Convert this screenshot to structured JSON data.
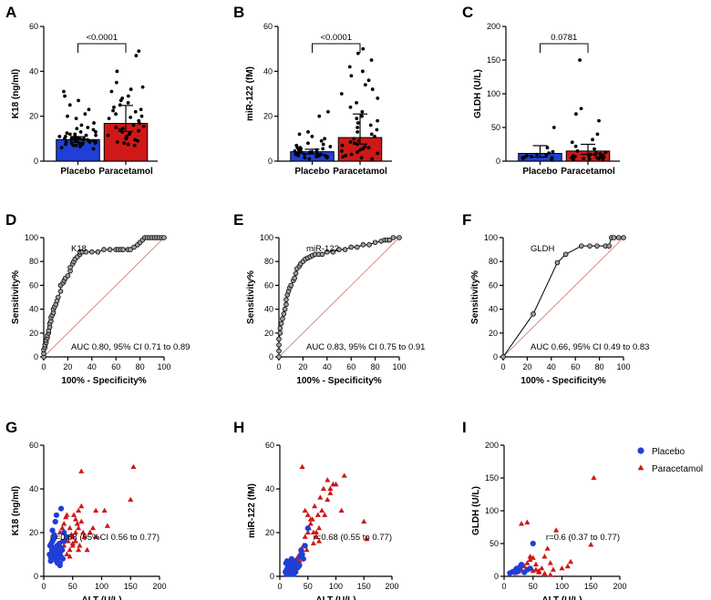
{
  "colors": {
    "placebo": "#1f3fd6",
    "paracetamol": "#d01818",
    "axis": "#000000",
    "diagonal": "#e05555",
    "roc_marker_fill": "#9e9e9e"
  },
  "legend": {
    "placement": "top-right",
    "entries": [
      "Placebo",
      "Paracetamol"
    ]
  },
  "chart_data": [
    {
      "id": "A",
      "type": "bar",
      "ylabel": "K18 (ng/ml)",
      "categories": [
        "Placebo",
        "Paracetamol"
      ],
      "ylim": [
        0,
        60
      ],
      "yticks": [
        "0",
        "20",
        "40",
        "60"
      ],
      "means": [
        9.6,
        16.8
      ],
      "ci": [
        [
          8.3,
          10.9
        ],
        [
          13.2,
          24.8
        ]
      ],
      "pvalue": "<0.0001",
      "points": [
        [
          5.5,
          6,
          6.5,
          7,
          7,
          7.5,
          7.5,
          8,
          8,
          8,
          8.5,
          8.5,
          8.5,
          9,
          9,
          9,
          9,
          9.5,
          9.5,
          9.5,
          10,
          10,
          10,
          10,
          10.5,
          10.5,
          11,
          11,
          11,
          11.5,
          11.5,
          12,
          12,
          12.5,
          13,
          13,
          14,
          14.5,
          15,
          16,
          17,
          19,
          20,
          21,
          23,
          25,
          27,
          29,
          31
        ],
        [
          7,
          7.5,
          8,
          8.5,
          9,
          9.5,
          10,
          10.5,
          11,
          11.5,
          12,
          12.5,
          13,
          13.5,
          14,
          14.5,
          15,
          15.5,
          16,
          17,
          18,
          19,
          19.5,
          20,
          21,
          22,
          22.5,
          23,
          24,
          25,
          26,
          27,
          28,
          29,
          31,
          32,
          33,
          35,
          40,
          47,
          49
        ]
      ]
    },
    {
      "id": "B",
      "type": "bar",
      "ylabel": "miR-122 (fM)",
      "categories": [
        "Placebo",
        "Paracetamol"
      ],
      "ylim": [
        0,
        60
      ],
      "yticks": [
        "0",
        "20",
        "40",
        "60"
      ],
      "means": [
        4.2,
        10.5
      ],
      "ci": [
        [
          3.2,
          5.3
        ],
        [
          7.6,
          21.0
        ]
      ],
      "pvalue": "<0.0001",
      "points": [
        [
          1,
          1.5,
          1.5,
          2,
          2,
          2.5,
          2.5,
          2.5,
          3,
          3,
          3,
          3.5,
          3.5,
          3.5,
          4,
          4,
          4,
          4.5,
          4.5,
          5,
          5,
          5.5,
          5.5,
          6,
          6,
          6.5,
          7,
          7.5,
          8,
          9,
          10,
          11,
          12,
          13,
          20,
          22
        ],
        [
          1,
          1.5,
          2,
          2.5,
          3,
          3.5,
          4,
          4.5,
          5,
          5.5,
          6,
          6.5,
          7,
          7.5,
          8,
          8.5,
          9,
          10,
          11,
          12,
          13,
          14,
          15,
          16,
          17,
          18,
          19,
          20,
          22,
          24,
          26,
          28,
          30,
          32,
          34,
          36,
          38,
          40,
          42,
          45,
          48,
          50
        ]
      ]
    },
    {
      "id": "C",
      "type": "bar",
      "ylabel": "GLDH (U/L)",
      "categories": [
        "Placebo",
        "Paracetamol"
      ],
      "ylim": [
        0,
        200
      ],
      "yticks": [
        "0",
        "50",
        "100",
        "150",
        "200"
      ],
      "means": [
        11.5,
        15.0
      ],
      "ci": [
        [
          6,
          23
        ],
        [
          10,
          25
        ]
      ],
      "pvalue": "0.0781",
      "points": [
        [
          3,
          4,
          5,
          5,
          6,
          7,
          8,
          9,
          10,
          12,
          14,
          20,
          50
        ],
        [
          2,
          3,
          3,
          4,
          4,
          5,
          5,
          6,
          6,
          7,
          7,
          8,
          8,
          9,
          10,
          10,
          11,
          12,
          13,
          15,
          18,
          22,
          28,
          32,
          40,
          60,
          70,
          78,
          150
        ]
      ]
    },
    {
      "id": "D",
      "type": "line",
      "subtype": "roc",
      "series_label": "K18",
      "xlabel": "100% - Specificity%",
      "ylabel": "Sensitivity%",
      "xlim": [
        0,
        100
      ],
      "ylim": [
        0,
        100
      ],
      "xticks": [
        "0",
        "20",
        "40",
        "60",
        "80",
        "100"
      ],
      "yticks": [
        "0",
        "20",
        "40",
        "60",
        "80",
        "100"
      ],
      "annotation": "AUC 0.80, 95% CI 0.71 to 0.89",
      "x": [
        0,
        0,
        0,
        1,
        1,
        2,
        2,
        3,
        3,
        4,
        4,
        5,
        5,
        6,
        6,
        7,
        8,
        8,
        9,
        10,
        11,
        12,
        14,
        14,
        16,
        17,
        18,
        20,
        22,
        22,
        24,
        25,
        26,
        28,
        30,
        30,
        32,
        35,
        40,
        45,
        50,
        55,
        60,
        62,
        64,
        66,
        70,
        72,
        75,
        78,
        80,
        82,
        84,
        86,
        88,
        90,
        92,
        94,
        96,
        98,
        100
      ],
      "y": [
        0,
        3,
        6,
        8,
        10,
        12,
        14,
        16,
        18,
        20,
        22,
        25,
        28,
        30,
        33,
        35,
        37,
        40,
        42,
        44,
        47,
        50,
        55,
        60,
        62,
        64,
        66,
        68,
        72,
        75,
        78,
        80,
        82,
        84,
        86,
        88,
        88,
        88,
        88,
        88,
        90,
        90,
        90,
        90,
        90,
        90,
        90,
        90,
        92,
        94,
        96,
        98,
        100,
        100,
        100,
        100,
        100,
        100,
        100,
        100,
        100
      ]
    },
    {
      "id": "E",
      "type": "line",
      "subtype": "roc",
      "series_label": "miR-122",
      "xlabel": "100% - Specificity%",
      "ylabel": "Sensitivity%",
      "xlim": [
        0,
        100
      ],
      "ylim": [
        0,
        100
      ],
      "xticks": [
        "0",
        "20",
        "40",
        "60",
        "80",
        "100"
      ],
      "yticks": [
        "0",
        "20",
        "40",
        "60",
        "80",
        "100"
      ],
      "annotation": "AUC 0.83, 95% CI 0.75 to 0.91",
      "x": [
        0,
        0,
        0,
        0,
        1,
        1,
        2,
        3,
        4,
        5,
        6,
        6,
        7,
        8,
        9,
        10,
        12,
        13,
        14,
        15,
        17,
        18,
        20,
        22,
        24,
        26,
        28,
        30,
        33,
        36,
        40,
        45,
        50,
        55,
        60,
        65,
        70,
        75,
        80,
        85,
        88,
        90,
        92,
        95,
        100
      ],
      "y": [
        0,
        5,
        10,
        15,
        20,
        24,
        28,
        32,
        36,
        40,
        44,
        48,
        52,
        55,
        58,
        60,
        64,
        66,
        70,
        74,
        76,
        78,
        80,
        82,
        83,
        84,
        85,
        86,
        86,
        86,
        88,
        88,
        90,
        90,
        92,
        92,
        94,
        94,
        96,
        97,
        98,
        98,
        98,
        100,
        100
      ]
    },
    {
      "id": "F",
      "type": "line",
      "subtype": "roc",
      "series_label": "GLDH",
      "xlabel": "100% - Specificity%",
      "ylabel": "Sensitivity%",
      "xlim": [
        0,
        100
      ],
      "ylim": [
        0,
        100
      ],
      "xticks": [
        "0",
        "20",
        "40",
        "60",
        "80",
        "100"
      ],
      "yticks": [
        "0",
        "20",
        "40",
        "60",
        "80",
        "100"
      ],
      "annotation": "AUC 0.66, 95% CI 0.49 to 0.83",
      "x": [
        0,
        25,
        45,
        52,
        65,
        72,
        78,
        85,
        88,
        90,
        92,
        96,
        100
      ],
      "y": [
        0,
        36,
        79,
        86,
        93,
        93,
        93,
        93,
        93,
        100,
        100,
        100,
        100
      ]
    },
    {
      "id": "G",
      "type": "scatter",
      "xlabel": "ALT (U/L)",
      "ylabel": "K18 (ng/ml)",
      "xlim": [
        0,
        200
      ],
      "ylim": [
        0,
        60
      ],
      "xticks": [
        "0",
        "50",
        "100",
        "150",
        "200"
      ],
      "yticks": [
        "0",
        "20",
        "40",
        "60"
      ],
      "annotation": "r =0.68 (95%CI 0.56 to 0.77)",
      "series": [
        {
          "name": "Placebo",
          "marker": "circle",
          "x": [
            10,
            12,
            13,
            14,
            15,
            16,
            17,
            18,
            19,
            20,
            21,
            22,
            23,
            24,
            25,
            26,
            27,
            28,
            30,
            32,
            35,
            12,
            14,
            16,
            18,
            20,
            22,
            24,
            26,
            28,
            11,
            13,
            15,
            17,
            19,
            21,
            23,
            25,
            27,
            29,
            20,
            22,
            30,
            35,
            40,
            15,
            18,
            24,
            28,
            33
          ],
          "y": [
            10,
            9,
            8,
            12,
            11,
            10,
            9,
            13,
            12,
            8,
            11,
            10,
            14,
            9,
            12,
            11,
            15,
            10,
            13,
            12,
            16,
            7,
            8,
            9,
            10,
            11,
            7,
            8,
            9,
            6,
            14,
            15,
            16,
            17,
            18,
            13,
            12,
            11,
            10,
            9,
            25,
            28,
            31,
            20,
            18,
            21,
            19,
            6,
            5,
            8
          ]
        },
        {
          "name": "Paracetamol",
          "marker": "triangle",
          "x": [
            20,
            25,
            30,
            35,
            40,
            45,
            50,
            55,
            60,
            65,
            70,
            75,
            80,
            85,
            90,
            30,
            35,
            40,
            45,
            50,
            55,
            60,
            65,
            40,
            45,
            50,
            55,
            60,
            28,
            32,
            38,
            42,
            48,
            52,
            58,
            62,
            68,
            105,
            110,
            150,
            155,
            65,
            90
          ],
          "y": [
            8,
            12,
            10,
            14,
            18,
            12,
            15,
            20,
            22,
            25,
            18,
            12,
            20,
            22,
            30,
            16,
            24,
            28,
            22,
            18,
            26,
            30,
            32,
            10,
            9,
            14,
            16,
            12,
            20,
            22,
            27,
            16,
            19,
            28,
            24,
            14,
            20,
            30,
            23,
            35,
            50,
            48,
            18
          ]
        }
      ]
    },
    {
      "id": "H",
      "type": "scatter",
      "xlabel": "ALT (U/L)",
      "ylabel": "miR-122 (fM)",
      "xlim": [
        0,
        200
      ],
      "ylim": [
        0,
        60
      ],
      "xticks": [
        "0",
        "50",
        "100",
        "150",
        "200"
      ],
      "yticks": [
        "0",
        "20",
        "40",
        "60"
      ],
      "annotation": "r=0.68 (0.55 to 0.77)",
      "series": [
        {
          "name": "Placebo",
          "marker": "circle",
          "x": [
            10,
            12,
            13,
            14,
            15,
            16,
            17,
            18,
            19,
            20,
            21,
            22,
            23,
            24,
            25,
            26,
            27,
            28,
            30,
            32,
            35,
            12,
            14,
            16,
            18,
            20,
            22,
            24,
            26,
            28,
            11,
            13,
            15,
            17,
            19,
            21,
            23,
            25,
            27,
            29,
            40,
            45,
            50,
            38,
            42,
            36
          ],
          "y": [
            2,
            3,
            1,
            4,
            2,
            3,
            5,
            2,
            4,
            3,
            6,
            1,
            2,
            5,
            4,
            3,
            7,
            2,
            6,
            4,
            5,
            1,
            2,
            3,
            1,
            2,
            4,
            3,
            5,
            2,
            6,
            7,
            5,
            4,
            3,
            8,
            2,
            1,
            3,
            6,
            10,
            14,
            22,
            12,
            8,
            9
          ]
        },
        {
          "name": "Paracetamol",
          "marker": "triangle",
          "x": [
            20,
            25,
            30,
            35,
            40,
            45,
            50,
            55,
            60,
            65,
            70,
            75,
            80,
            85,
            90,
            95,
            100,
            110,
            115,
            150,
            155,
            40,
            45,
            50,
            55,
            60,
            65,
            70,
            30,
            35,
            38,
            42,
            48,
            52,
            58,
            62,
            68,
            72,
            78,
            85,
            90
          ],
          "y": [
            3,
            5,
            8,
            10,
            12,
            18,
            20,
            26,
            15,
            20,
            22,
            30,
            28,
            35,
            40,
            42,
            42,
            30,
            46,
            25,
            17,
            50,
            30,
            28,
            24,
            20,
            18,
            16,
            5,
            7,
            9,
            14,
            12,
            22,
            26,
            32,
            28,
            36,
            40,
            44,
            38
          ]
        }
      ]
    },
    {
      "id": "I",
      "type": "scatter",
      "xlabel": "ALT (U/L)",
      "ylabel": "GLDH (U/L)",
      "xlim": [
        0,
        200
      ],
      "ylim": [
        0,
        200
      ],
      "xticks": [
        "0",
        "50",
        "100",
        "150",
        "200"
      ],
      "yticks": [
        "0",
        "50",
        "100",
        "150",
        "200"
      ],
      "annotation": "r=0.6 (0.37 to 0.77)",
      "series": [
        {
          "name": "Placebo",
          "marker": "circle",
          "x": [
            10,
            15,
            18,
            20,
            22,
            25,
            28,
            30,
            35,
            40,
            45,
            50
          ],
          "y": [
            5,
            7,
            6,
            10,
            12,
            8,
            15,
            18,
            6,
            10,
            12,
            50
          ]
        },
        {
          "name": "Paracetamol",
          "marker": "triangle",
          "x": [
            20,
            25,
            30,
            35,
            40,
            45,
            50,
            55,
            60,
            65,
            70,
            75,
            80,
            85,
            90,
            100,
            110,
            115,
            150,
            155,
            30,
            40,
            50,
            60,
            70,
            80,
            45,
            55
          ],
          "y": [
            5,
            8,
            10,
            15,
            20,
            25,
            28,
            10,
            8,
            12,
            30,
            42,
            20,
            10,
            70,
            12,
            15,
            22,
            48,
            150,
            80,
            82,
            8,
            6,
            4,
            2,
            30,
            18
          ]
        }
      ]
    }
  ]
}
